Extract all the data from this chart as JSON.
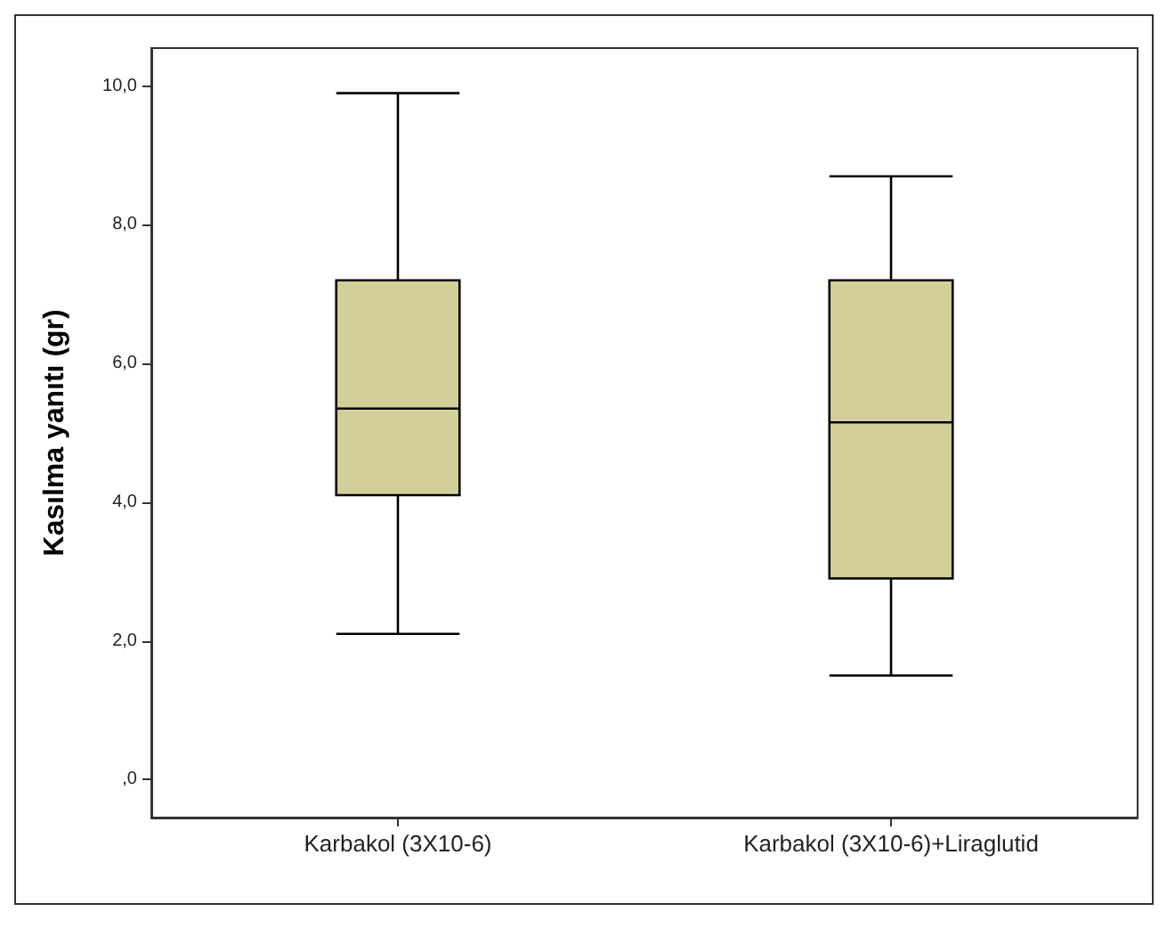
{
  "chart_data": {
    "type": "box",
    "ylabel": "Kasılma yanıtı (gr)",
    "categories": [
      "Karbakol (3X10-6)",
      "Karbakol (3X10-6)+Liraglutid"
    ],
    "color": "#d3cf99",
    "boxes": [
      {
        "low": 2.1,
        "q1": 4.1,
        "median": 5.35,
        "q3": 7.2,
        "high": 9.9
      },
      {
        "low": 1.5,
        "q1": 2.9,
        "median": 5.15,
        "q3": 7.2,
        "high": 8.7
      }
    ],
    "ylim": [
      -0.55,
      10.55
    ],
    "yticks": [
      {
        "value": 0,
        "label": ",0"
      },
      {
        "value": 2,
        "label": "2,0"
      },
      {
        "value": 4,
        "label": "4,0"
      },
      {
        "value": 6,
        "label": "6,0"
      },
      {
        "value": 8,
        "label": "8,0"
      },
      {
        "value": 10,
        "label": "10,0"
      }
    ],
    "grid": false
  }
}
